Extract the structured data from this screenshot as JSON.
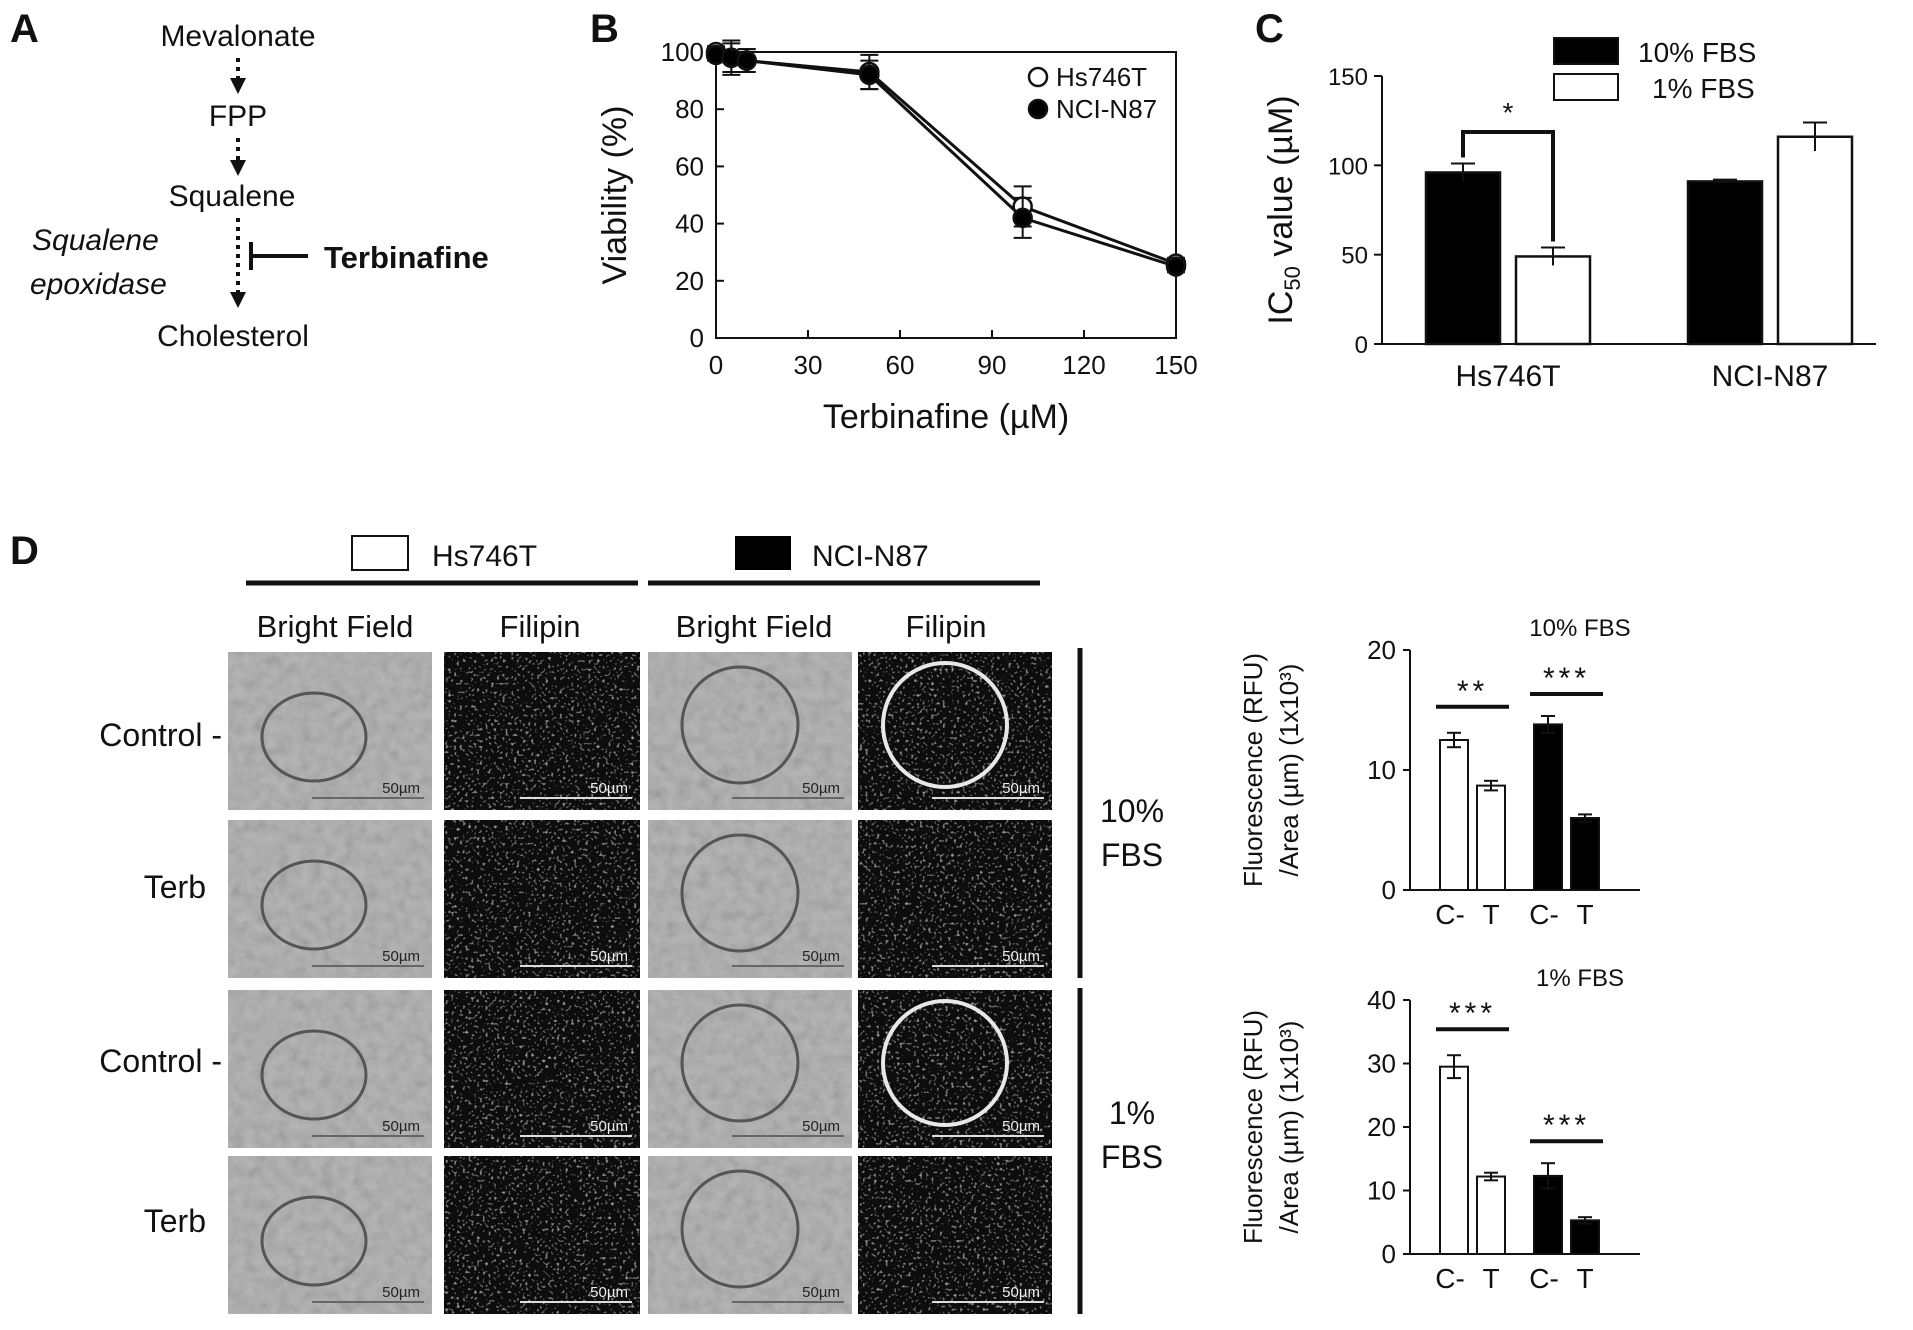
{
  "panels": {
    "A": {
      "letter": "A",
      "nodes": [
        "Mevalonate",
        "FPP",
        "Squalene",
        "Cholesterol"
      ],
      "enzyme_line1": "Squalene",
      "enzyme_line2": "epoxidase",
      "inhibitor": "Terbinafine"
    },
    "B": {
      "letter": "B"
    },
    "C": {
      "letter": "C"
    },
    "D": {
      "letter": "D",
      "cell_lines": [
        "Hs746T",
        "NCI-N87"
      ],
      "column_headers": [
        "Bright Field",
        "Filipin",
        "Bright Field",
        "Filipin"
      ],
      "row_labels": [
        "Control -",
        "Terb",
        "Control -",
        "Terb"
      ],
      "condition_10_line1": "10%",
      "condition_10_line2": "FBS",
      "condition_1_line1": "1%",
      "condition_1_line2": "FBS",
      "scale_bar": "50µm"
    }
  },
  "colors": {
    "black_fill": "#000000",
    "white_fill": "#ffffff",
    "micrograph_gray": "#b8b8b8",
    "micrograph_dark": "#0c0c0c"
  },
  "chart_data": [
    {
      "id": "B",
      "type": "line",
      "xlabel": "Terbinafine (µM)",
      "ylabel": "Viability (%)",
      "xlim": [
        0,
        150
      ],
      "ylim": [
        0,
        100
      ],
      "xticks": [
        0,
        30,
        60,
        90,
        120,
        150
      ],
      "yticks": [
        0,
        20,
        40,
        60,
        80,
        100
      ],
      "legend_position": "top-right",
      "series": [
        {
          "name": "Hs746T",
          "marker": "open-circle",
          "x": [
            0,
            5,
            10,
            50,
            100,
            150
          ],
          "y": [
            100,
            98,
            97,
            93,
            46,
            26
          ],
          "err": [
            2,
            6,
            4,
            6,
            7,
            2
          ]
        },
        {
          "name": "NCI-N87",
          "marker": "filled-circle",
          "x": [
            0,
            5,
            10,
            50,
            100,
            150
          ],
          "y": [
            99,
            98,
            97,
            92,
            42,
            25
          ],
          "err": [
            2,
            5,
            4,
            5,
            7,
            2
          ]
        }
      ]
    },
    {
      "id": "C",
      "type": "bar",
      "ylabel_main": "IC",
      "ylabel_sub": "50",
      "ylabel_rest": " value (µM)",
      "ylim": [
        0,
        150
      ],
      "yticks": [
        0,
        50,
        100,
        150
      ],
      "categories": [
        "Hs746T",
        "NCI-N87"
      ],
      "legend_position": "top",
      "significance": "*",
      "series": [
        {
          "name": "10% FBS",
          "fill": "black",
          "values": [
            96,
            91
          ],
          "err": [
            5,
            1
          ]
        },
        {
          "name": "1% FBS",
          "fill": "white",
          "values": [
            49,
            116
          ],
          "err": [
            5,
            8
          ]
        }
      ]
    },
    {
      "id": "D-top",
      "type": "bar",
      "title": "10% FBS",
      "ylabel_line1": "Fluorescence (RFU)",
      "ylabel_line2": "/Area (µm) (1x10³)",
      "ylim": [
        0,
        20
      ],
      "yticks": [
        0,
        10,
        20
      ],
      "categories": [
        "C-",
        "T",
        "C-",
        "T"
      ],
      "bars": [
        {
          "value": 12.5,
          "err": 0.6,
          "fill": "white"
        },
        {
          "value": 8.7,
          "err": 0.4,
          "fill": "white"
        },
        {
          "value": 13.8,
          "err": 0.7,
          "fill": "black"
        },
        {
          "value": 6.0,
          "err": 0.3,
          "fill": "black"
        }
      ],
      "significance": [
        "**",
        "***"
      ]
    },
    {
      "id": "D-bottom",
      "type": "bar",
      "title": "1% FBS",
      "ylabel_line1": "Fluorescence (RFU)",
      "ylabel_line2": "/Area (µm) (1x10³)",
      "ylim": [
        0,
        40
      ],
      "yticks": [
        0,
        10,
        20,
        30,
        40
      ],
      "categories": [
        "C-",
        "T",
        "C-",
        "T"
      ],
      "bars": [
        {
          "value": 29.5,
          "err": 1.8,
          "fill": "white"
        },
        {
          "value": 12.2,
          "err": 0.6,
          "fill": "white"
        },
        {
          "value": 12.3,
          "err": 2.0,
          "fill": "black"
        },
        {
          "value": 5.3,
          "err": 0.5,
          "fill": "black"
        }
      ],
      "significance": [
        "***",
        "***"
      ]
    }
  ]
}
